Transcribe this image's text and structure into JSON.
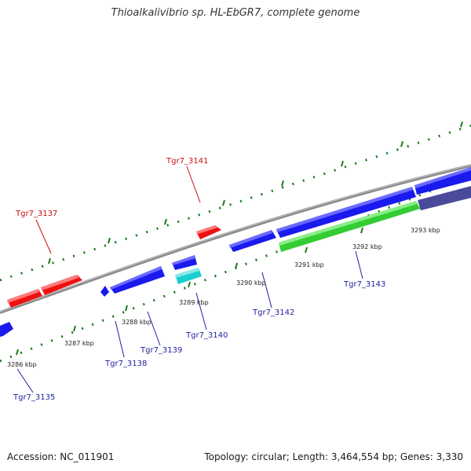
{
  "title": "Thioalkalivibrio sp. HL-EbGR7, complete genome",
  "footer": {
    "accession": "Accession: NC_011901",
    "topology": "Topology: circular; Length: 3,464,554 bp; Genes: 3,330"
  },
  "scale_labels": [
    "3286 kbp",
    "3287 kbp",
    "3288 kbp",
    "3289 kbp",
    "3290 kbp",
    "3291 kbp",
    "3292 kbp",
    "3293 kbp"
  ],
  "genes": [
    {
      "name": "Tgr7_3135",
      "strand": "forward",
      "color": "#1a1aee"
    },
    {
      "name": "Tgr7_3137",
      "strand": "reverse",
      "color": "#ee1111"
    },
    {
      "name": "Tgr7_3138",
      "strand": "forward",
      "color": "#1a1aee"
    },
    {
      "name": "Tgr7_3139",
      "strand": "forward",
      "color": "#1a1aee"
    },
    {
      "name": "Tgr7_3140",
      "strand": "forward",
      "color": "#1aced0"
    },
    {
      "name": "Tgr7_3141",
      "strand": "reverse",
      "color": "#ee1111"
    },
    {
      "name": "Tgr7_3142",
      "strand": "forward",
      "color": "#1a1aee"
    },
    {
      "name": "Tgr7_3143",
      "strand": "forward",
      "color": "#33cc33"
    }
  ],
  "colors": {
    "forward_label": "#1f1fa0",
    "reverse_label": "#cc1111",
    "backbone": "#8a8a8a",
    "tick_marks": "#1a7a1a",
    "faded_gene": "#4a4a9a"
  }
}
